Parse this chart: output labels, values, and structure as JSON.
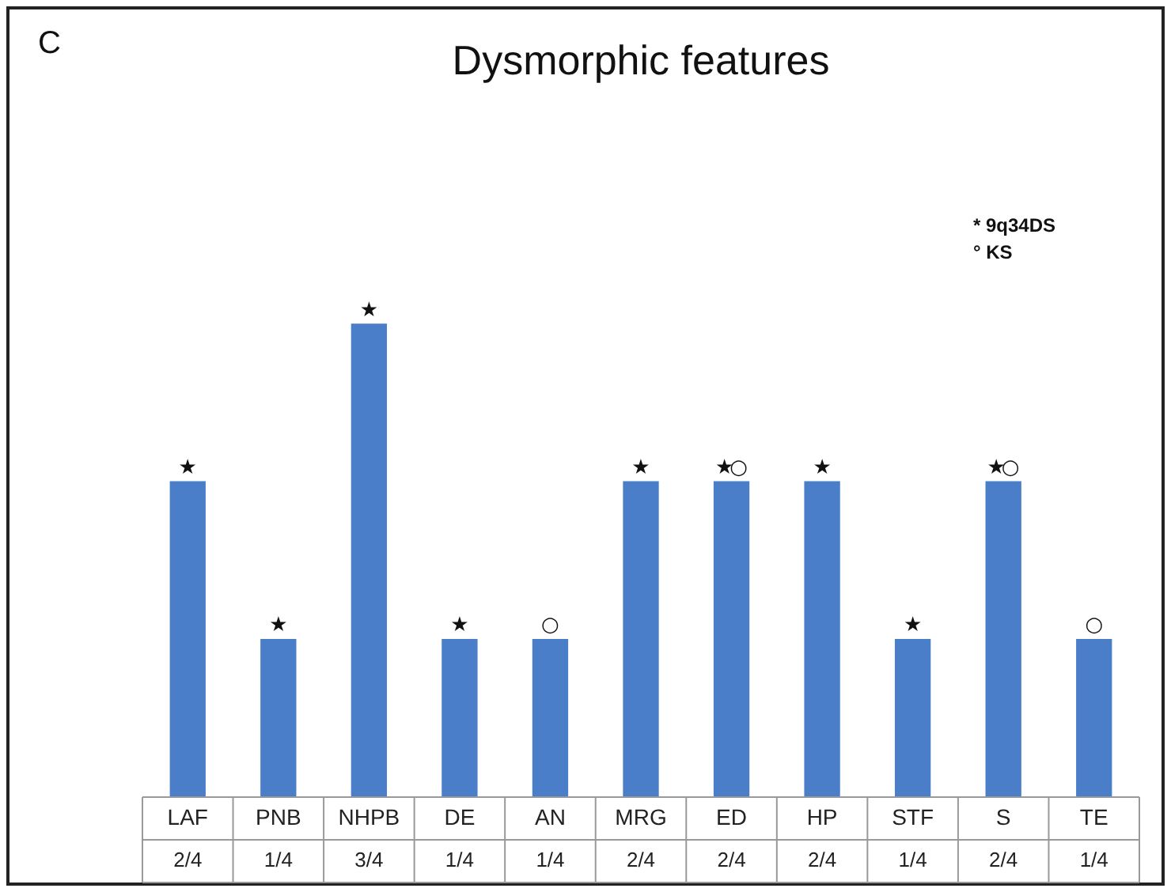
{
  "chart_data": {
    "type": "bar",
    "title": "Dysmorphic features",
    "tick_labels": false,
    "color": "#4a7ec8",
    "categories": [
      "LAF",
      "PNB",
      "NHPB",
      "DE",
      "AN",
      "MRG",
      "ED",
      "HP",
      "STF",
      "S",
      "TE"
    ],
    "values": [
      0.5,
      0.25,
      0.75,
      0.25,
      0.25,
      0.5,
      0.5,
      0.5,
      0.25,
      0.5,
      0.25
    ],
    "value_labels": [
      "2/4",
      "1/4",
      "3/4",
      "1/4",
      "1/4",
      "2/4",
      "2/4",
      "2/4",
      "1/4",
      "2/4",
      "1/4"
    ],
    "annotations": [
      "C",
      "* 9q34DS",
      "° KS",
      {
        "text": "★",
        "x": "LAF",
        "y": 0.5
      },
      {
        "text": "★",
        "x": "PNB",
        "y": 0.25
      },
      {
        "text": "★",
        "x": "NHPB",
        "y": 0.75
      },
      {
        "text": "★",
        "x": "DE",
        "y": 0.25
      },
      {
        "text": "○",
        "x": "AN",
        "y": 0.25
      },
      {
        "text": "★",
        "x": "MRG",
        "y": 0.5
      },
      {
        "text": "★",
        "x": "ED",
        "y": 0.5
      },
      {
        "text": "○",
        "x": "ED",
        "y": 0.5
      },
      {
        "text": "★",
        "x": "HP",
        "y": 0.5
      },
      {
        "text": "★",
        "x": "STF",
        "y": 0.25
      },
      {
        "text": "★",
        "x": "S",
        "y": 0.5
      },
      {
        "text": "○",
        "x": "S",
        "y": 0.5
      },
      {
        "text": "○",
        "x": "TE",
        "y": 0.25
      }
    ],
    "legend": false
  }
}
